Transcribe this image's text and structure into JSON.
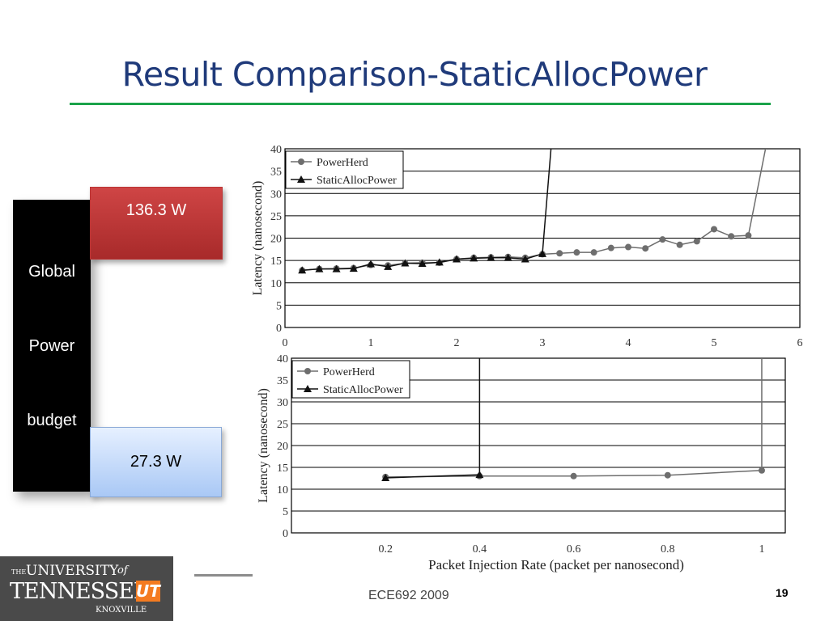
{
  "slide": {
    "title": "Result Comparison-StaticAllocPower",
    "budget_words": [
      "Global",
      "Power",
      "budget"
    ],
    "high_power": "136.3 W",
    "low_power": "27.3 W",
    "footer": "ECE692   2009",
    "page_number": "19",
    "logo": {
      "the": "THE",
      "university": "UNIVERSITY",
      "of": "of",
      "tennessee": "TENNESSEE",
      "ut": "UT",
      "knoxville": "KNOXVILLE"
    },
    "colors": {
      "title": "#1f3a7a",
      "rule": "#1aa34a",
      "high_box": "#c23a3a",
      "low_box": "#bcd4f7",
      "powerherd": "#6e6e6e",
      "staticalloc": "#111111"
    }
  },
  "chart_data": [
    {
      "type": "line",
      "xlabel": "",
      "ylabel": "Latency (nanosecond)",
      "xlim": [
        0,
        6
      ],
      "ylim": [
        0,
        40
      ],
      "xticks": [
        0,
        1,
        2,
        3,
        4,
        5,
        6
      ],
      "yticks": [
        0,
        5,
        10,
        15,
        20,
        25,
        30,
        35,
        40
      ],
      "grid": "horizontal",
      "legend_position": "top-left",
      "series": [
        {
          "name": "PowerHerd",
          "marker": "circle",
          "color": "#6e6e6e",
          "x": [
            0.2,
            0.4,
            0.6,
            0.8,
            1.0,
            1.2,
            1.4,
            1.6,
            1.8,
            2.0,
            2.2,
            2.4,
            2.6,
            2.8,
            3.0,
            3.2,
            3.4,
            3.6,
            3.8,
            4.0,
            4.2,
            4.4,
            4.6,
            4.8,
            5.0,
            5.2,
            5.4,
            5.6
          ],
          "y": [
            12.8,
            13.1,
            13.2,
            13.3,
            14.0,
            13.9,
            14.4,
            14.5,
            14.5,
            15.3,
            15.6,
            15.7,
            15.8,
            15.6,
            16.4,
            16.6,
            16.8,
            16.8,
            17.8,
            18.0,
            17.7,
            19.7,
            18.5,
            19.3,
            22.0,
            20.4,
            20.6,
            40
          ],
          "marked_points": 27
        },
        {
          "name": "StaticAllocPower",
          "marker": "triangle",
          "color": "#111111",
          "x": [
            0.2,
            0.4,
            0.6,
            0.8,
            1.0,
            1.2,
            1.4,
            1.6,
            1.8,
            2.0,
            2.2,
            2.4,
            2.6,
            2.8,
            3.0,
            3.1
          ],
          "y": [
            12.8,
            13.1,
            13.1,
            13.2,
            14.2,
            13.6,
            14.4,
            14.3,
            14.6,
            15.3,
            15.5,
            15.6,
            15.6,
            15.3,
            16.5,
            40
          ],
          "marked_points": 15
        }
      ]
    },
    {
      "type": "line",
      "xlabel": "Packet Injection Rate (packet per nanosecond)",
      "ylabel": "Latency (nanosecond)",
      "xlim": [
        0,
        1.05
      ],
      "ylim": [
        0,
        40
      ],
      "xticks": [
        0.2,
        0.4,
        0.6,
        0.8,
        1
      ],
      "yticks": [
        0,
        5,
        10,
        15,
        20,
        25,
        30,
        35,
        40
      ],
      "grid": "horizontal",
      "legend_position": "top-left",
      "series": [
        {
          "name": "PowerHerd",
          "marker": "circle",
          "color": "#6e6e6e",
          "x": [
            0.2,
            0.4,
            0.6,
            0.8,
            1.0,
            1.0
          ],
          "y": [
            12.8,
            13.0,
            13.0,
            13.2,
            14.3,
            40
          ],
          "marked_points": 5
        },
        {
          "name": "StaticAllocPower",
          "marker": "triangle",
          "color": "#111111",
          "x": [
            0.2,
            0.4,
            0.4
          ],
          "y": [
            12.6,
            13.3,
            40
          ],
          "marked_points": 2
        }
      ]
    }
  ]
}
